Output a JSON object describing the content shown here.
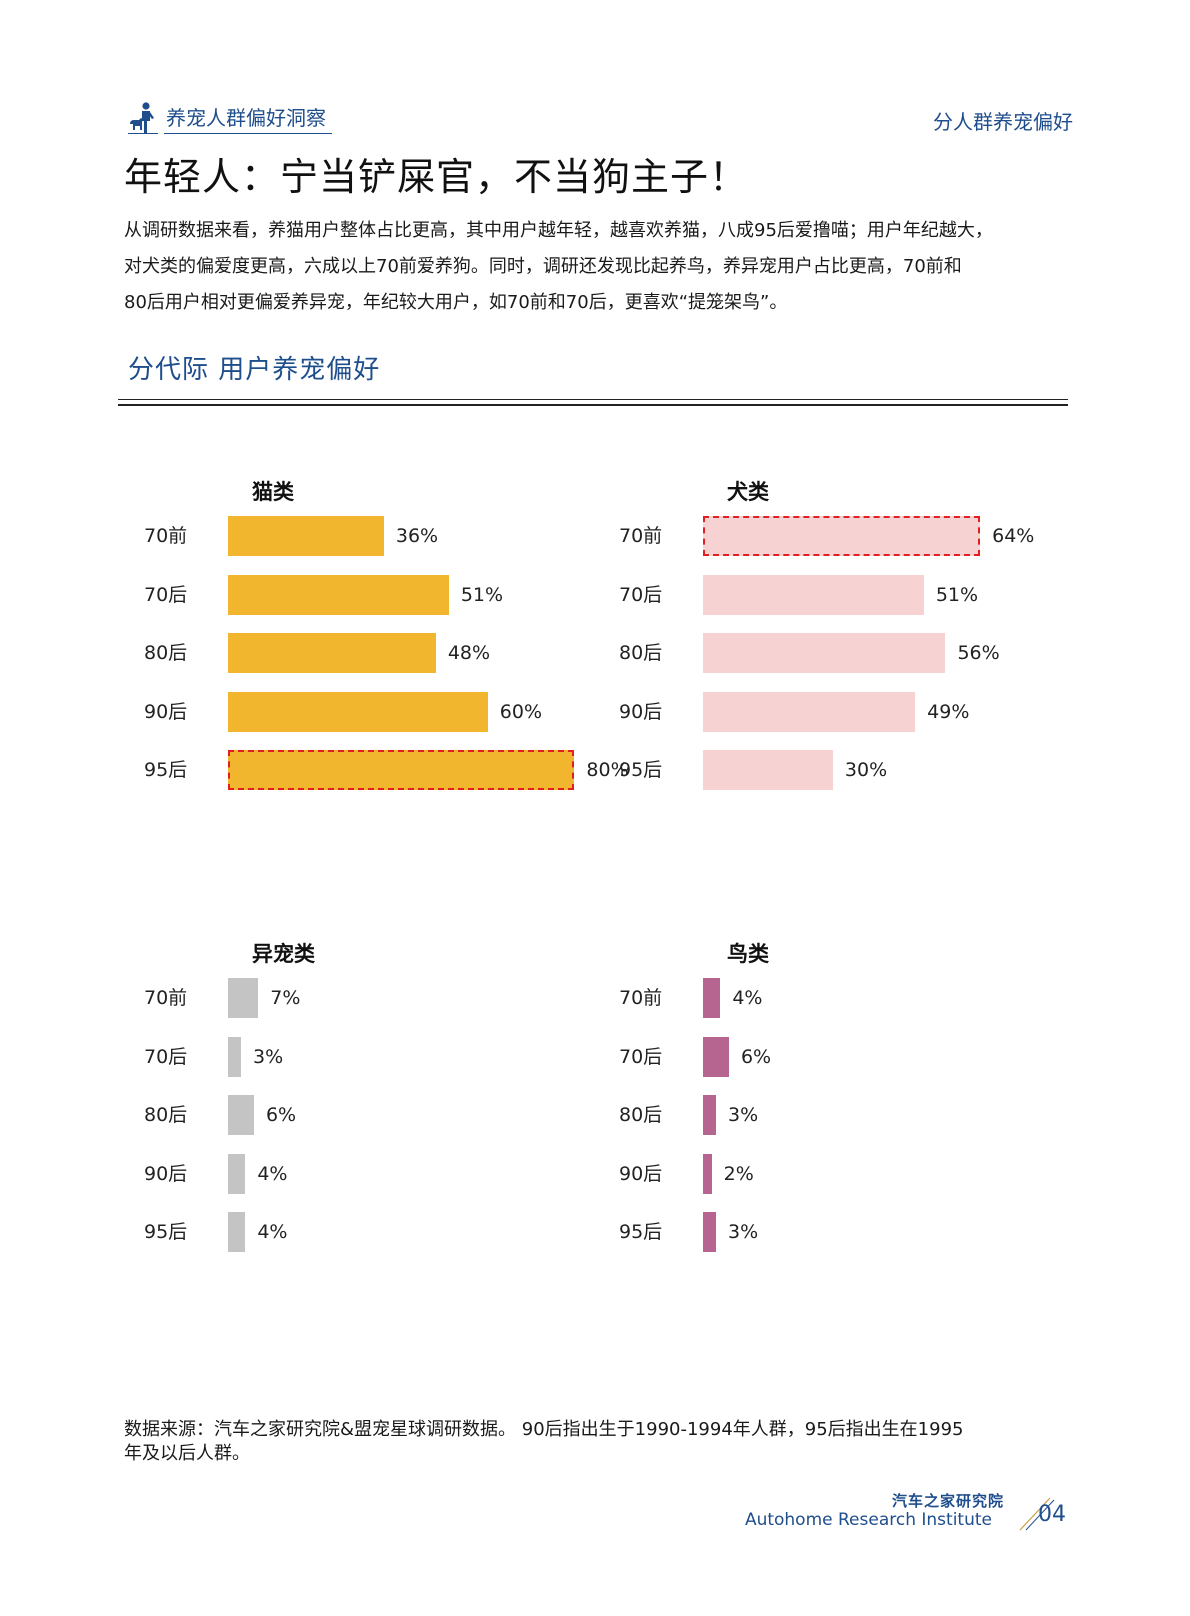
{
  "header": {
    "left_label": "养宠人群偏好洞察",
    "right_label": "分人群养宠偏好",
    "icon": "person-with-dog-icon"
  },
  "title": "年轻人：宁当铲屎官，不当狗主子！",
  "paragraph": [
    "从调研数据来看，养猫用户整体占比更高，其中用户越年轻，越喜欢养猫，八成95后爱撸喵；用户年纪越大，",
    "对犬类的偏爱度更高，六成以上70前爱养狗。同时，调研还发现比起养鸟，养异宠用户占比更高，70前和",
    "80后用户相对更偏爱养异宠，年纪较大用户，如70前和70后，更喜欢“提笼架鸟”。"
  ],
  "section_title": "分代际  用户养宠偏好",
  "chart_data": [
    {
      "type": "bar",
      "orientation": "horizontal",
      "title": "猫类",
      "categories": [
        "70前",
        "70后",
        "80后",
        "90后",
        "95后"
      ],
      "values": [
        36,
        51,
        48,
        60,
        80
      ],
      "labels": [
        "36%",
        "51%",
        "48%",
        "60%",
        "80%"
      ],
      "highlight": [
        4
      ],
      "color": "#f2b52e",
      "xlim": [
        0,
        100
      ],
      "grid": false
    },
    {
      "type": "bar",
      "orientation": "horizontal",
      "title": "犬类",
      "categories": [
        "70前",
        "70后",
        "80后",
        "90后",
        "95后"
      ],
      "values": [
        64,
        51,
        56,
        49,
        30
      ],
      "labels": [
        "64%",
        "51%",
        "56%",
        "49%",
        "30%"
      ],
      "highlight": [
        0
      ],
      "color": "#f7d2d2",
      "xlim": [
        0,
        100
      ],
      "grid": false
    },
    {
      "type": "bar",
      "orientation": "horizontal",
      "title": "异宠类",
      "categories": [
        "70前",
        "70后",
        "80后",
        "90后",
        "95后"
      ],
      "values": [
        7,
        3,
        6,
        4,
        4
      ],
      "labels": [
        "7%",
        "3%",
        "6%",
        "4%",
        "4%"
      ],
      "highlight": [],
      "color": "#c4c4c4",
      "xlim": [
        0,
        100
      ],
      "grid": false
    },
    {
      "type": "bar",
      "orientation": "horizontal",
      "title": "鸟类",
      "categories": [
        "70前",
        "70后",
        "80后",
        "90后",
        "95后"
      ],
      "values": [
        4,
        6,
        3,
        2,
        3
      ],
      "labels": [
        "4%",
        "6%",
        "3%",
        "2%",
        "3%"
      ],
      "highlight": [],
      "color": "#b5658f",
      "xlim": [
        0,
        100
      ],
      "grid": false
    }
  ],
  "footnote": [
    "数据来源：汽车之家研究院&盟宠星球调研数据。 90后指出生于1990-1994年人群，95后指出生在1995",
    "年及以后人群。"
  ],
  "footer": {
    "brand_cn": "汽车之家研究院",
    "brand_en": "Autohome Research Institute",
    "page_number": "04"
  }
}
